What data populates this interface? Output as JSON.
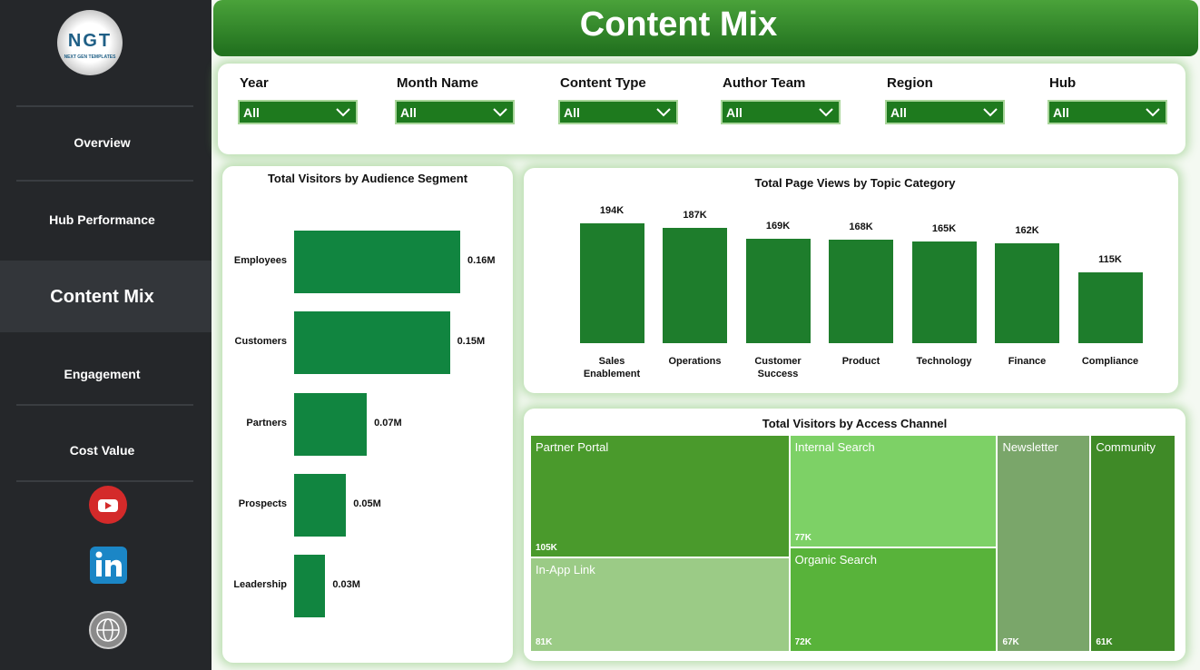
{
  "sidebar": {
    "logo": "NGT",
    "logo_subtitle": "NEXT GEN TEMPLATES",
    "nav": [
      "Overview",
      "Hub Performance",
      "Content Mix",
      "Engagement",
      "Cost Value"
    ],
    "active": 2
  },
  "header": {
    "title": "Content Mix"
  },
  "filters": [
    {
      "label": "Year",
      "value": "All"
    },
    {
      "label": "Month Name",
      "value": "All"
    },
    {
      "label": "Content Type",
      "value": "All"
    },
    {
      "label": "Author Team",
      "value": "All"
    },
    {
      "label": "Region",
      "value": "All"
    },
    {
      "label": "Hub",
      "value": "All"
    }
  ],
  "chart_data": [
    {
      "type": "hbar",
      "title": "Total Visitors by Audience Segment",
      "categories": [
        "Employees",
        "Customers",
        "Partners",
        "Prospects",
        "Leadership"
      ],
      "values": [
        0.16,
        0.15,
        0.07,
        0.05,
        0.03
      ],
      "value_labels": [
        "0.16M",
        "0.15M",
        "0.07M",
        "0.05M",
        "0.03M"
      ],
      "color": "#118540"
    },
    {
      "type": "bar",
      "title": "Total Page Views by Topic Category",
      "categories": [
        "Sales Enablement",
        "Operations",
        "Customer Success",
        "Product",
        "Technology",
        "Finance",
        "Compliance"
      ],
      "values": [
        194,
        187,
        169,
        168,
        165,
        162,
        115
      ],
      "value_labels": [
        "194K",
        "187K",
        "169K",
        "168K",
        "165K",
        "162K",
        "115K"
      ],
      "color": "#1e7d2c"
    },
    {
      "type": "treemap",
      "title": "Total Visitors by Access Channel",
      "categories": [
        "Partner Portal",
        "In-App Link",
        "Internal Search",
        "Organic Search",
        "Newsletter",
        "Community"
      ],
      "values": [
        105,
        81,
        77,
        72,
        67,
        61
      ],
      "value_labels": [
        "105K",
        "81K",
        "77K",
        "72K",
        "67K",
        "61K"
      ],
      "colors": [
        "#4a9a2c",
        "#9bcb86",
        "#7dd166",
        "#58b33a",
        "#7aa66a",
        "#3f8a27"
      ]
    }
  ]
}
